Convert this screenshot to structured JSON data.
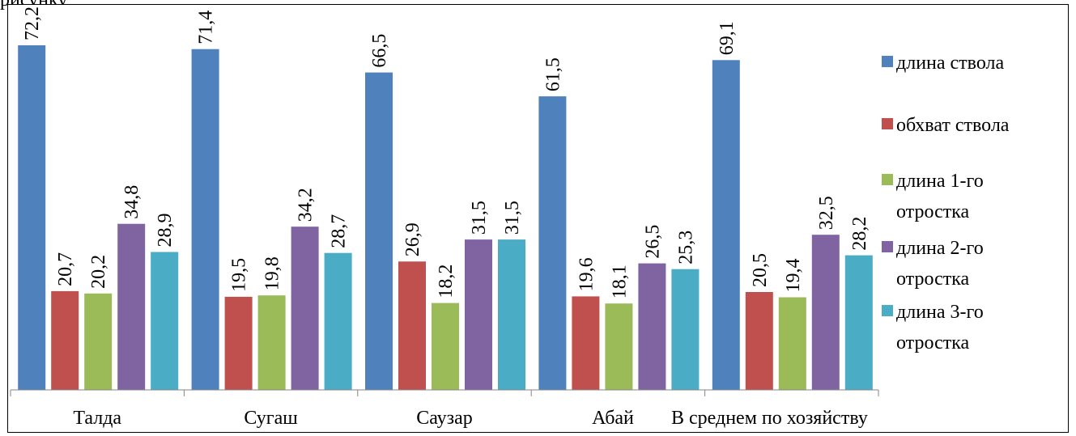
{
  "page": {
    "header_fragment": "рисунку"
  },
  "chart_data": {
    "type": "bar",
    "title": "",
    "xlabel": "",
    "ylabel": "",
    "ylim": [
      0,
      75
    ],
    "grid": false,
    "legend_position": "right",
    "categories": [
      "Талда",
      "Сугаш",
      "Саузар",
      "Абай",
      "В среднем по хозяйству"
    ],
    "series": [
      {
        "name": "длина ствола",
        "color": "#4f81bd",
        "values": [
          72.2,
          71.4,
          66.5,
          61.5,
          69.1
        ],
        "labels": [
          "72,2",
          "71,4",
          "66,5",
          "61,5",
          "69,1"
        ]
      },
      {
        "name": "обхват ствола",
        "color": "#c0504d",
        "values": [
          20.7,
          19.5,
          26.9,
          19.6,
          20.5
        ],
        "labels": [
          "20,7",
          "19,5",
          "26,9",
          "19,6",
          "20,5"
        ]
      },
      {
        "name": "длина 1-го отростка",
        "color": "#9bbb59",
        "values": [
          20.2,
          19.8,
          18.2,
          18.1,
          19.4
        ],
        "labels": [
          "20,2",
          "19,8",
          "18,2",
          "18,1",
          "19,4"
        ]
      },
      {
        "name": "длина 2-го отростка",
        "color": "#8064a2",
        "values": [
          34.8,
          34.2,
          31.5,
          26.5,
          32.5
        ],
        "labels": [
          "34,8",
          "34,2",
          "31,5",
          "26,5",
          "32,5"
        ]
      },
      {
        "name": "длина 3-го отростка",
        "color": "#4bacc6",
        "values": [
          28.9,
          28.7,
          31.5,
          25.3,
          28.2
        ],
        "labels": [
          "28,9",
          "28,7",
          "31,5",
          "25,3",
          "28,2"
        ]
      }
    ],
    "legend_lines": [
      [
        "длина ствола"
      ],
      [
        "обхват ствола"
      ],
      [
        "длина 1-го",
        "отростка"
      ],
      [
        "длина 2-го",
        "отростка"
      ],
      [
        "длина 3-го",
        "отростка"
      ]
    ]
  }
}
